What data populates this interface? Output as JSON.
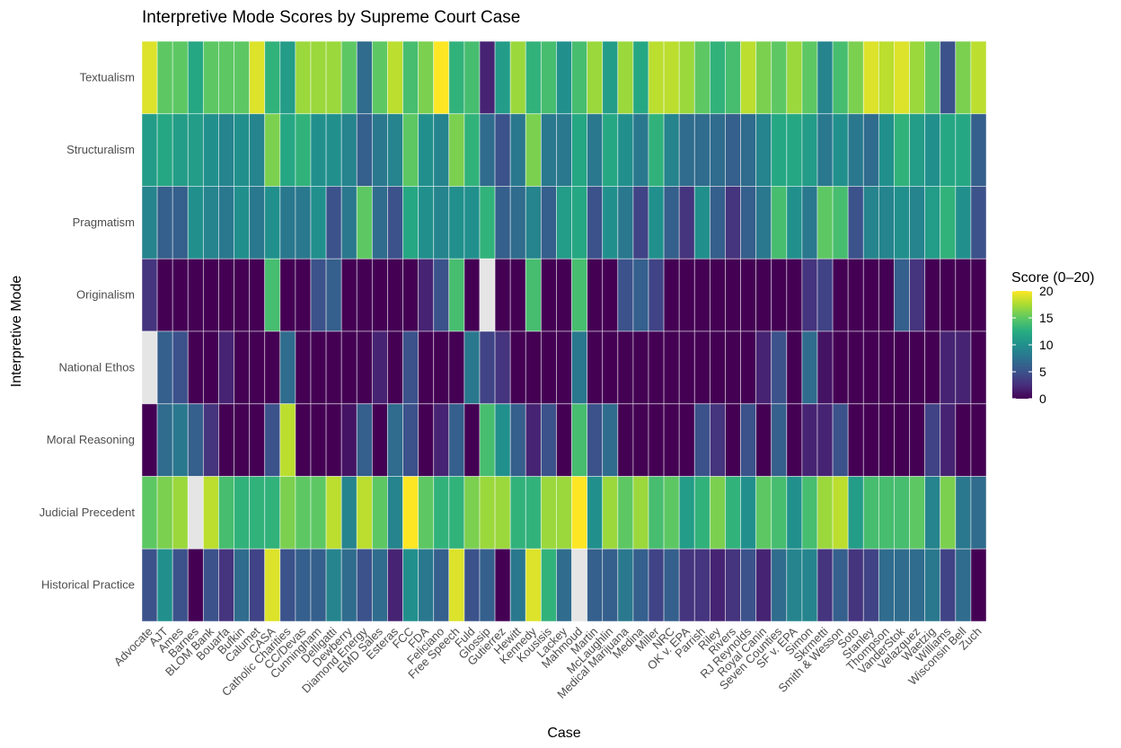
{
  "chart_data": {
    "type": "heatmap",
    "title": "Interpretive Mode Scores by Supreme Court Case",
    "xlabel": "Case",
    "ylabel": "Interpretive Mode",
    "legend": {
      "title": "Score (0–20)",
      "ticks": [
        "0",
        "5",
        "10",
        "15",
        "20"
      ],
      "range": [
        0,
        20
      ],
      "position": "right",
      "na_color": "#e5e5e5"
    },
    "x": [
      "Advocate",
      "AJT",
      "Ames",
      "Barnes",
      "BLOM Bank",
      "Bouarfa",
      "Bufkin",
      "Calumet",
      "CASA",
      "Catholic Charities",
      "CC/Devas",
      "Cunningham",
      "Delligatti",
      "Dewberry",
      "Diamond Energy",
      "EMD Sales",
      "Esteras",
      "FCC",
      "FDA",
      "Feliciano",
      "Free Speech",
      "Fuld",
      "Glossip",
      "Gutierrez",
      "Hewitt",
      "Kennedy",
      "Kousisis",
      "Lackey",
      "Mahmoud",
      "Martin",
      "McLaughlin",
      "Medical Marijuana",
      "Medina",
      "Miller",
      "NRC",
      "OK v. EPA",
      "Parrish",
      "Riley",
      "Rivers",
      "RJ Reynolds",
      "Royal Canin",
      "Seven Counties",
      "SF v. EPA",
      "Simon",
      "Skrmetti",
      "Smith & Wesson",
      "Soto",
      "Stanley",
      "Thompson",
      "VanderStok",
      "Velazquez",
      "Waetzig",
      "Williams",
      "Wisconsin Bell",
      "Zuch"
    ],
    "y": [
      "Textualism",
      "Structuralism",
      "Pragmatism",
      "Originalism",
      "National Ethos",
      "Moral Reasoning",
      "Judicial Precedent",
      "Historical Practice"
    ],
    "values": [
      [
        19,
        15,
        15,
        12,
        15,
        15,
        15,
        19,
        13,
        11,
        17,
        17,
        17,
        15,
        7,
        15,
        18,
        14,
        16,
        20,
        13,
        14,
        2,
        11,
        17,
        13,
        14,
        10,
        14,
        17,
        11,
        17,
        12,
        18,
        18,
        17,
        15,
        13,
        14,
        18,
        16,
        15,
        17,
        15,
        9,
        14,
        16,
        19,
        18,
        19,
        17,
        15,
        5,
        16,
        18
      ],
      [
        11,
        12,
        11,
        11,
        10,
        9,
        10,
        9,
        16,
        12,
        13,
        10,
        10,
        9,
        6,
        8,
        9,
        15,
        10,
        9,
        16,
        13,
        7,
        5,
        8,
        16,
        8,
        8,
        12,
        8,
        12,
        10,
        8,
        13,
        9,
        7,
        7,
        7,
        6,
        7,
        9,
        12,
        12,
        11,
        8,
        10,
        8,
        7,
        10,
        13,
        11,
        10,
        12,
        12,
        6
      ],
      [
        9,
        6,
        6,
        10,
        9,
        8,
        10,
        8,
        10,
        8,
        8,
        10,
        5,
        8,
        15,
        7,
        5,
        12,
        10,
        9,
        10,
        10,
        13,
        6,
        7,
        9,
        6,
        11,
        12,
        5,
        10,
        8,
        4,
        10,
        6,
        3,
        10,
        6,
        3,
        6,
        8,
        14,
        10,
        8,
        15,
        14,
        5,
        9,
        9,
        10,
        9,
        11,
        13,
        10,
        5
      ],
      [
        3,
        0,
        0,
        0,
        0,
        0,
        0,
        0,
        14,
        0,
        0,
        5,
        6,
        0,
        0,
        0,
        0,
        0,
        2,
        5,
        14,
        0,
        null,
        0,
        0,
        14,
        0,
        0,
        14,
        0,
        0,
        5,
        6,
        4,
        0,
        0,
        0,
        0,
        0,
        0,
        0,
        0,
        0,
        3,
        4,
        0,
        0,
        0,
        0,
        6,
        3,
        0,
        0,
        0,
        0
      ],
      [
        null,
        6,
        5,
        0,
        0,
        2,
        0,
        0,
        0,
        7,
        0,
        0,
        0,
        0,
        0,
        2,
        0,
        5,
        0,
        0,
        0,
        8,
        4,
        3,
        0,
        0,
        0,
        0,
        8,
        0,
        0,
        0,
        0,
        0,
        0,
        0,
        0,
        0,
        0,
        0,
        2,
        5,
        0,
        7,
        1,
        0,
        0,
        0,
        0,
        0,
        0,
        0,
        2,
        2,
        0
      ],
      [
        0,
        7,
        8,
        6,
        3,
        0,
        0,
        0,
        5,
        18,
        0,
        0,
        0,
        1,
        6,
        0,
        7,
        5,
        0,
        2,
        6,
        0,
        14,
        10,
        6,
        2,
        5,
        0,
        14,
        5,
        7,
        0,
        0,
        0,
        0,
        0,
        5,
        3,
        0,
        5,
        0,
        6,
        0,
        2,
        2,
        5,
        0,
        0,
        0,
        0,
        0,
        4,
        2,
        0,
        0
      ],
      [
        15,
        16,
        17,
        null,
        18,
        14,
        13,
        13,
        13,
        16,
        15,
        15,
        18,
        9,
        18,
        15,
        9,
        20,
        15,
        13,
        13,
        16,
        17,
        17,
        13,
        13,
        17,
        17,
        20,
        10,
        17,
        15,
        17,
        14,
        15,
        11,
        13,
        16,
        13,
        10,
        15,
        14,
        10,
        14,
        17,
        18,
        11,
        14,
        14,
        14,
        15,
        9,
        16,
        8,
        7
      ],
      [
        5,
        10,
        5,
        0,
        5,
        3,
        7,
        4,
        19,
        5,
        6,
        6,
        9,
        7,
        5,
        7,
        2,
        10,
        8,
        6,
        19,
        5,
        6,
        0,
        8,
        19,
        13,
        7,
        null,
        6,
        6,
        8,
        6,
        4,
        6,
        3,
        3,
        2,
        3,
        5,
        2,
        7,
        9,
        9,
        3,
        6,
        3,
        4,
        7,
        7,
        7,
        8,
        4,
        7,
        0
      ]
    ]
  }
}
